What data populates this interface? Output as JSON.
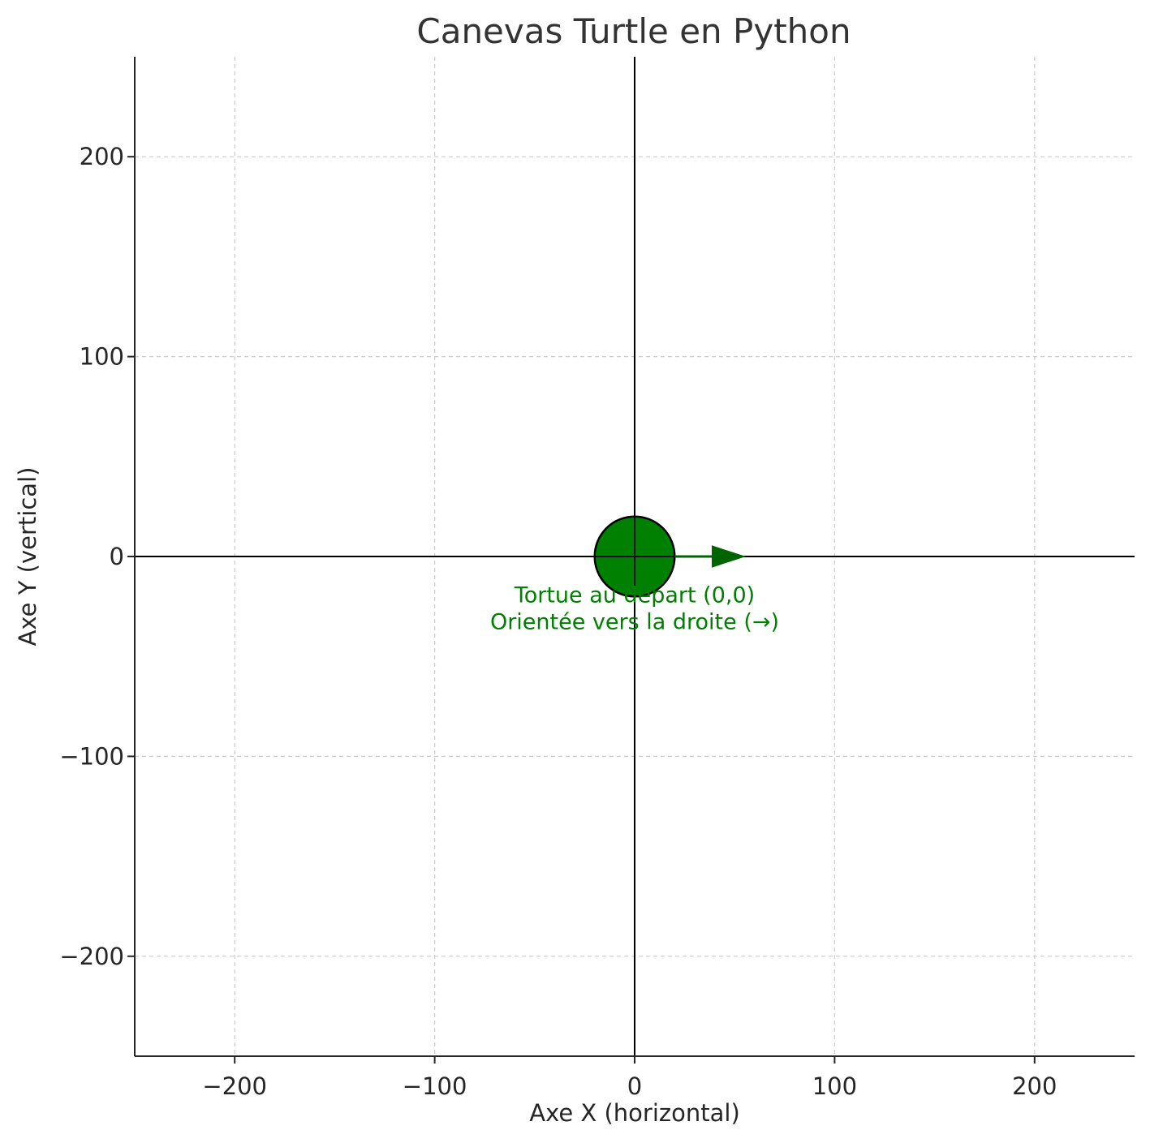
{
  "chart_data": {
    "type": "scatter",
    "title": "Canevas Turtle en Python",
    "xlabel": "Axe X (horizontal)",
    "ylabel": "Axe Y (vertical)",
    "xlim": [
      -250,
      250
    ],
    "ylim": [
      -250,
      250
    ],
    "xticks": [
      -200,
      -100,
      0,
      100,
      200
    ],
    "yticks": [
      -200,
      -100,
      0,
      100,
      200
    ],
    "xtick_labels": [
      "−200",
      "−100",
      "0",
      "100",
      "200"
    ],
    "ytick_labels": [
      "−200",
      "−100",
      "0",
      "100",
      "200"
    ],
    "grid": true,
    "origin_axes": true,
    "turtle": {
      "x": 0,
      "y": 0,
      "radius": 20,
      "color": "#008000",
      "heading_arrow": {
        "from": [
          20,
          0
        ],
        "to": [
          55,
          0
        ],
        "color": "#006400"
      }
    },
    "annotation": {
      "lines": [
        "Tortue au départ (0,0)",
        "Orientée vers la droite (→)"
      ],
      "x": 0,
      "y": -23,
      "color": "#008000"
    }
  }
}
